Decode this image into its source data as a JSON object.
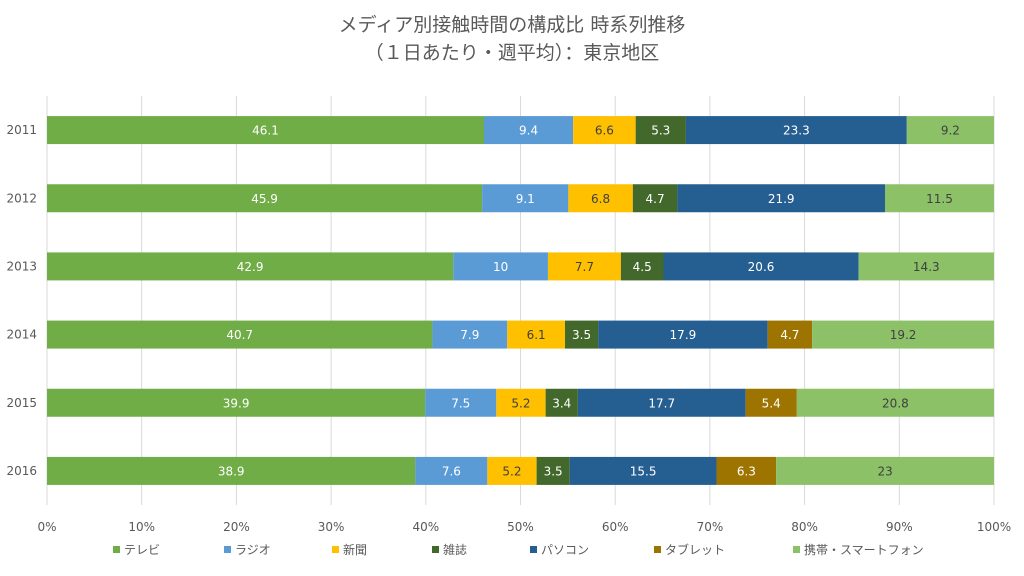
{
  "chart_data": {
    "type": "bar",
    "orientation": "horizontal",
    "stacked": "percent",
    "title_lines": [
      "メディア別接触時間の構成比 時系列推移",
      "（１日あたり・週平均）：東京地区"
    ],
    "categories": [
      "2011",
      "2012",
      "2013",
      "2014",
      "2015",
      "2016"
    ],
    "x_ticks": [
      "0%",
      "10%",
      "20%",
      "30%",
      "40%",
      "50%",
      "60%",
      "70%",
      "80%",
      "90%",
      "100%"
    ],
    "xlim": [
      0,
      100
    ],
    "grid": true,
    "legend_position": "bottom",
    "series": [
      {
        "name": "テレビ",
        "color": "#70ad47",
        "label_color": "#ffffff",
        "values": [
          46.1,
          45.9,
          42.9,
          40.7,
          39.9,
          38.9
        ]
      },
      {
        "name": "ラジオ",
        "color": "#5b9bd5",
        "label_color": "#ffffff",
        "values": [
          9.4,
          9.1,
          10,
          7.9,
          7.5,
          7.6
        ]
      },
      {
        "name": "新聞",
        "color": "#ffc000",
        "label_color": "#404040",
        "values": [
          6.6,
          6.8,
          7.7,
          6.1,
          5.2,
          5.2
        ]
      },
      {
        "name": "雑誌",
        "color": "#43682b",
        "label_color": "#ffffff",
        "values": [
          5.3,
          4.7,
          4.5,
          3.5,
          3.4,
          3.5
        ]
      },
      {
        "name": "パソコン",
        "color": "#255e91",
        "label_color": "#ffffff",
        "values": [
          23.3,
          21.9,
          20.6,
          17.9,
          17.7,
          15.5
        ]
      },
      {
        "name": "タブレット",
        "color": "#9e7400",
        "label_color": "#ffffff",
        "values": [
          null,
          null,
          null,
          4.7,
          5.4,
          6.3
        ]
      },
      {
        "name": "携帯・スマートフォン",
        "color": "#8cc168",
        "label_color": "#404040",
        "values": [
          9.2,
          11.5,
          14.3,
          19.2,
          20.8,
          23
        ]
      }
    ]
  }
}
